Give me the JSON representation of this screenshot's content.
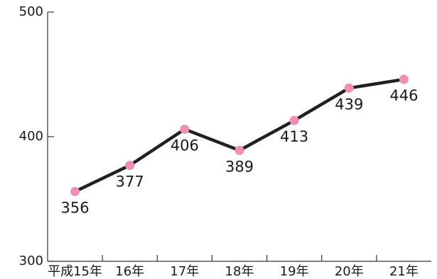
{
  "chart_data": {
    "type": "line",
    "title": "",
    "xlabel": "",
    "ylabel": "",
    "categories": [
      "平成15年",
      "16年",
      "17年",
      "18年",
      "19年",
      "20年",
      "21年"
    ],
    "values": [
      356,
      377,
      406,
      389,
      413,
      439,
      446
    ],
    "data_labels": [
      "356",
      "377",
      "406",
      "389",
      "413",
      "439",
      "446"
    ],
    "ylim": [
      300,
      500
    ],
    "yticks": [
      300,
      400,
      500
    ],
    "ytick_labels": [
      "300",
      "400",
      "500"
    ],
    "grid": false,
    "legend": "none",
    "colors": {
      "line": "#231f20",
      "marker": "#ef8fb5",
      "axis": "#333333"
    }
  }
}
